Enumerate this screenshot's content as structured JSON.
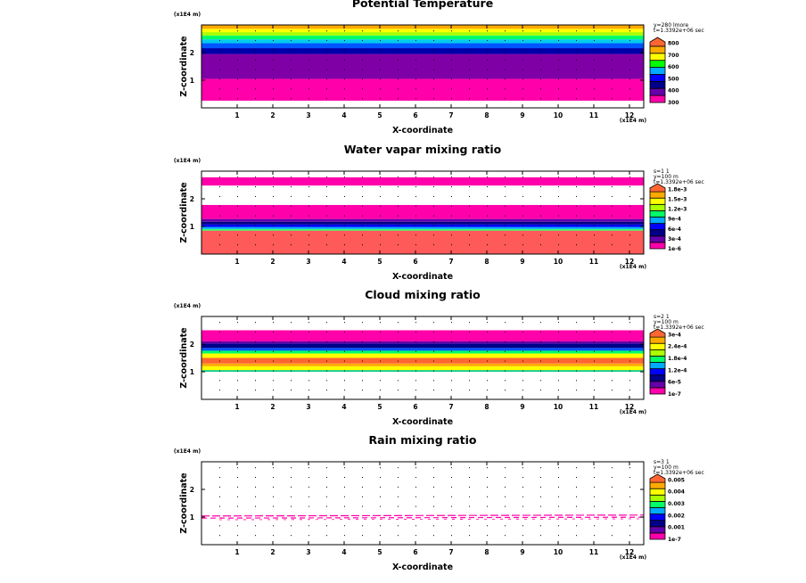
{
  "common": {
    "x_label": "X-coordinate",
    "z_label": "Z-coordinate",
    "x_exponent": "(x1E4 m)",
    "z_exponent": "(x1E4 m)",
    "x_ticks": [
      "1",
      "2",
      "3",
      "4",
      "5",
      "6",
      "7",
      "8",
      "9",
      "10",
      "11",
      "12"
    ],
    "z_ticks": [
      "1",
      "2"
    ]
  },
  "chart_data": [
    {
      "type": "heatmap",
      "title": "Potential Temperature",
      "xlabel": "X-coordinate",
      "ylabel": "Z-coordinate",
      "xlim": [
        0,
        12.4
      ],
      "ylim": [
        0,
        3.0
      ],
      "info": [
        "y=280 lmore",
        "t=1.3392e+06 sec"
      ],
      "colorbar": {
        "labels": [
          "300",
          "400",
          "500",
          "600",
          "700",
          "800"
        ],
        "colors": [
          "#ff00aa",
          "#6600aa",
          "#000088",
          "#0000ff",
          "#00aaff",
          "#00ff00",
          "#ffff00",
          "#ffaa00",
          "#ff6633"
        ]
      },
      "bands": [
        {
          "z0": 0.0,
          "z1": 0.26,
          "color": "#ffffff"
        },
        {
          "z0": 0.26,
          "z1": 1.05,
          "color": "#ff00aa"
        },
        {
          "z0": 1.05,
          "z1": 1.95,
          "color": "#8000a8"
        },
        {
          "z0": 1.95,
          "z1": 2.16,
          "color": "#0000aa"
        },
        {
          "z0": 2.16,
          "z1": 2.34,
          "color": "#0055ff"
        },
        {
          "z0": 2.34,
          "z1": 2.48,
          "color": "#00ccee"
        },
        {
          "z0": 2.48,
          "z1": 2.62,
          "color": "#00ff66"
        },
        {
          "z0": 2.62,
          "z1": 2.74,
          "color": "#aaff00"
        },
        {
          "z0": 2.74,
          "z1": 2.86,
          "color": "#ffff00"
        },
        {
          "z0": 2.86,
          "z1": 3.0,
          "color": "#ffaa00"
        }
      ]
    },
    {
      "type": "heatmap",
      "title": "Water vapar mixing ratio",
      "xlabel": "X-coordinate",
      "ylabel": "Z-coordinate",
      "xlim": [
        0,
        12.4
      ],
      "ylim": [
        0,
        3.0
      ],
      "info": [
        "s=1 1",
        "y=100 m",
        "t=1.3392e+06 sec"
      ],
      "colorbar": {
        "labels": [
          "1e-6",
          "3e-4",
          "6e-4",
          "9e-4",
          "1.2e-3",
          "1.5e-3",
          "1.8e-3"
        ],
        "colors": [
          "#ff00aa",
          "#6600aa",
          "#000088",
          "#0000ff",
          "#00aaff",
          "#00ff66",
          "#aaff00",
          "#ffff00",
          "#ffaa00",
          "#ff6633"
        ]
      },
      "bands": [
        {
          "z0": 0.0,
          "z1": 0.85,
          "color": "#ff5a5a"
        },
        {
          "z0": 0.85,
          "z1": 0.91,
          "color": "#33ff66"
        },
        {
          "z0": 0.91,
          "z1": 0.98,
          "color": "#00aaff"
        },
        {
          "z0": 0.98,
          "z1": 1.07,
          "color": "#0000ff"
        },
        {
          "z0": 1.07,
          "z1": 1.17,
          "color": "#000088"
        },
        {
          "z0": 1.17,
          "z1": 1.27,
          "color": "#6600aa"
        },
        {
          "z0": 1.27,
          "z1": 1.78,
          "color": "#ff00aa"
        },
        {
          "z0": 1.78,
          "z1": 2.48,
          "color": "#ffffff"
        },
        {
          "z0": 2.48,
          "z1": 2.78,
          "color": "#ff00aa"
        },
        {
          "z0": 2.78,
          "z1": 3.0,
          "color": "#ffffff"
        }
      ]
    },
    {
      "type": "heatmap",
      "title": "Cloud mixing ratio",
      "xlabel": "X-coordinate",
      "ylabel": "Z-coordinate",
      "xlim": [
        0,
        12.4
      ],
      "ylim": [
        0,
        3.0
      ],
      "info": [
        "s=2 1",
        "y=100 m",
        "t=1.3392e+06 sec"
      ],
      "colorbar": {
        "labels": [
          "1e-7",
          "6e-5",
          "1.2e-4",
          "1.8e-4",
          "2.4e-4",
          "3e-4"
        ],
        "colors": [
          "#ff00aa",
          "#6600aa",
          "#000088",
          "#0000ff",
          "#00aaff",
          "#00ff66",
          "#aaff00",
          "#ffff00",
          "#ffaa00",
          "#ff6633"
        ]
      },
      "bands": [
        {
          "z0": 0.0,
          "z1": 1.0,
          "color": "#ffffff"
        },
        {
          "z0": 1.0,
          "z1": 1.06,
          "color": "#00cc88"
        },
        {
          "z0": 1.06,
          "z1": 1.2,
          "color": "#ffff00"
        },
        {
          "z0": 1.2,
          "z1": 1.3,
          "color": "#ffaa00"
        },
        {
          "z0": 1.3,
          "z1": 1.5,
          "color": "#ff6633"
        },
        {
          "z0": 1.5,
          "z1": 1.66,
          "color": "#ffff00"
        },
        {
          "z0": 1.66,
          "z1": 1.76,
          "color": "#00ff66"
        },
        {
          "z0": 1.76,
          "z1": 1.86,
          "color": "#0055ff"
        },
        {
          "z0": 1.86,
          "z1": 2.02,
          "color": "#000088"
        },
        {
          "z0": 2.02,
          "z1": 2.1,
          "color": "#6600aa"
        },
        {
          "z0": 2.1,
          "z1": 2.5,
          "color": "#ff00aa"
        },
        {
          "z0": 2.5,
          "z1": 3.0,
          "color": "#ffffff"
        }
      ]
    },
    {
      "type": "heatmap",
      "title": "Rain mixing ratio",
      "xlabel": "X-coordinate",
      "ylabel": "Z-coordinate",
      "xlim": [
        0,
        12.4
      ],
      "ylim": [
        0,
        3.0
      ],
      "info": [
        "s=3 1",
        "y=100 m",
        "t=1.3392e+06 sec"
      ],
      "colorbar": {
        "labels": [
          "1e-7",
          "0.001",
          "0.002",
          "0.003",
          "0.004",
          "0.005"
        ],
        "colors": [
          "#ff00aa",
          "#6600aa",
          "#000088",
          "#0000ff",
          "#00aaff",
          "#00ff66",
          "#aaff00",
          "#ffff00",
          "#ffaa00",
          "#ff6633"
        ]
      },
      "bands": [
        {
          "z0": 0.0,
          "z1": 3.0,
          "color": "#ffffff"
        }
      ],
      "line": {
        "z": 1.0,
        "color": "#ff00aa"
      }
    }
  ]
}
